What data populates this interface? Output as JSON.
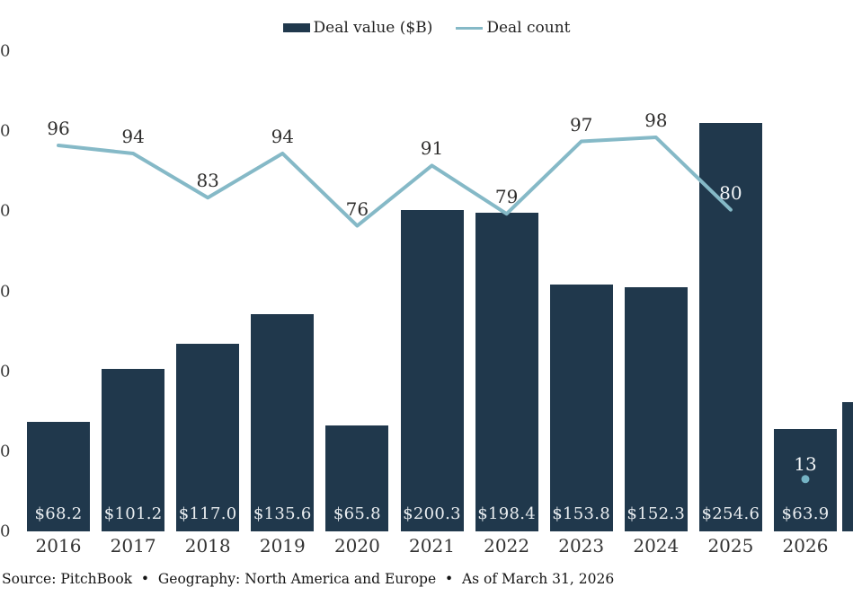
{
  "legend": {
    "value_label": "Deal value ($B)",
    "count_label": "Deal count"
  },
  "colors": {
    "bar": "#20384c",
    "line": "#85b9c7",
    "dot": "#74b3c4",
    "bar_label_text": "#e9edf0",
    "dark_text": "#2e2d2c"
  },
  "y_axis": {
    "note": "tick labels truncated at left edge of screenshot, only final digit visible",
    "visible_tick_labels": [
      "0",
      "0",
      "0",
      "0",
      "0",
      "0",
      "0"
    ]
  },
  "source_note": "Source: PitchBook  •  Geography: North America and Europe  •  As of March 31, 2026",
  "chart_data": {
    "type": "bar+line combo",
    "categories": [
      "2016",
      "2017",
      "2018",
      "2019",
      "2020",
      "2021",
      "2022",
      "2023",
      "2024",
      "2025",
      "2026"
    ],
    "series": [
      {
        "name": "Deal value ($B)",
        "type": "bar",
        "values": [
          68.2,
          101.2,
          117.0,
          135.6,
          65.8,
          200.3,
          198.4,
          153.8,
          152.3,
          254.6,
          63.9
        ],
        "data_labels": [
          "$68.2",
          "$101.2",
          "$117.0",
          "$135.6",
          "$65.8",
          "$200.3",
          "$198.4",
          "$153.8",
          "$152.3",
          "$254.6",
          "$63.9"
        ]
      },
      {
        "name": "Deal count",
        "type": "line",
        "values": [
          96,
          94,
          83,
          94,
          76,
          91,
          79,
          97,
          98,
          80,
          13
        ],
        "data_labels": [
          "96",
          "94",
          "83",
          "94",
          "76",
          "91",
          "79",
          "97",
          "98",
          "80",
          "13"
        ],
        "line_connects_years": "2016-2025",
        "isolated_point_year": "2026"
      }
    ],
    "title": "",
    "xlabel": "",
    "ylabel": "",
    "legend_position": "top-center",
    "grid": false,
    "count_axis_ticks_implied": [
      120,
      100,
      80,
      60,
      40,
      20,
      0
    ]
  }
}
